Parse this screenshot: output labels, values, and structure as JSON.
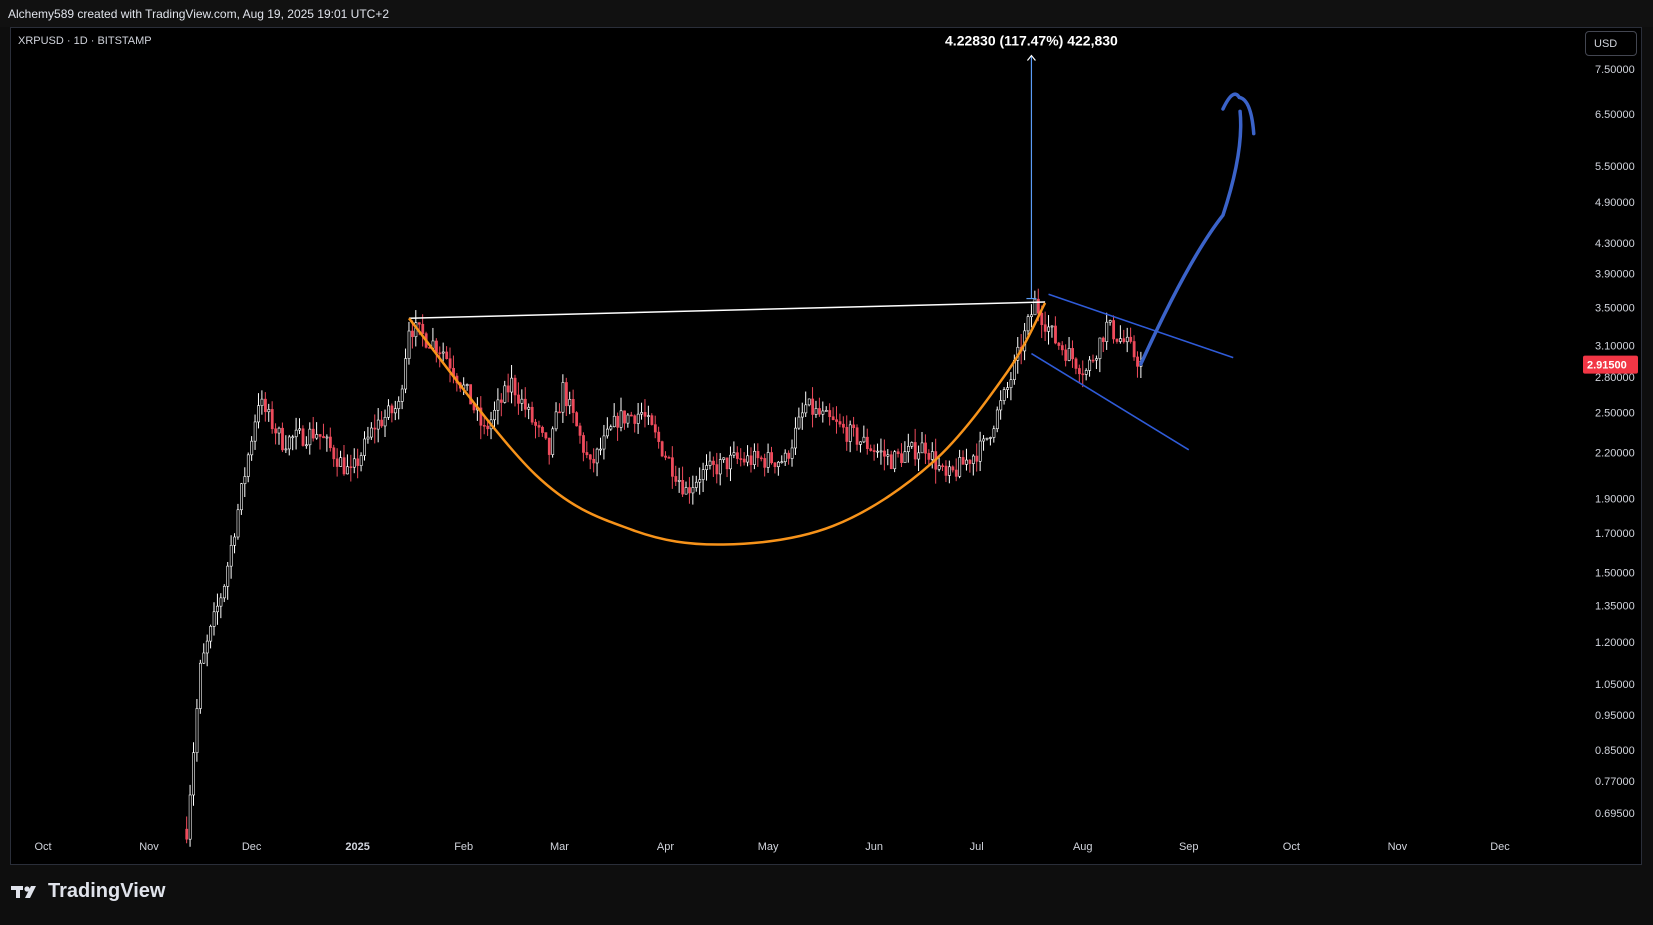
{
  "header": {
    "credit": "Alchemy589 created with TradingView.com, Aug 19, 2025 19:01 UTC+2"
  },
  "chart_header": {
    "symbol_line": "XRPUSD · 1D · BITSTAMP",
    "currency_button": "USD"
  },
  "footer": {
    "brand": "TradingView"
  },
  "colors": {
    "background": "#000000",
    "up_candle": "#ffffff",
    "down_candle": "#ef4b5c",
    "cup_curve": "#f7931a",
    "channel_lines": "#2f5bd8",
    "projection_arrow": "#3b63c9",
    "resistance_line": "#ffffff",
    "price_label_bg": "#f23645"
  },
  "icons": {
    "brand_logo": "tradingview-logo-icon"
  },
  "chart_data": {
    "type": "candlestick",
    "title": "",
    "xlabel": "",
    "ylabel": "",
    "y_scale": "log",
    "y_ticks": [
      7.5,
      6.5,
      5.5,
      4.9,
      4.3,
      3.9,
      3.5,
      3.1,
      2.8,
      2.5,
      2.2,
      1.9,
      1.7,
      1.5,
      1.35,
      1.2,
      1.05,
      0.95,
      0.85,
      0.77,
      0.695
    ],
    "y_tick_labels": [
      "7.50000",
      "6.50000",
      "5.50000",
      "4.90000",
      "4.30000",
      "3.90000",
      "3.50000",
      "3.10000",
      "2.80000",
      "2.50000",
      "2.20000",
      "1.90000",
      "1.70000",
      "1.50000",
      "1.35000",
      "1.20000",
      "1.05000",
      "0.95000",
      "0.85000",
      "0.77000",
      "0.69500"
    ],
    "x_ticks": [
      "Oct",
      "Nov",
      "Dec",
      "2025",
      "Feb",
      "Mar",
      "Apr",
      "May",
      "Jun",
      "Jul",
      "Aug",
      "Sep",
      "Oct",
      "Nov",
      "Dec"
    ],
    "x_tick_dates": [
      "2024-10-01",
      "2024-11-01",
      "2024-12-01",
      "2025-01-01",
      "2025-02-01",
      "2025-03-01",
      "2025-04-01",
      "2025-05-01",
      "2025-06-01",
      "2025-07-01",
      "2025-08-01",
      "2025-09-01",
      "2025-10-01",
      "2025-11-01",
      "2025-12-01"
    ],
    "x_range": [
      "2024-09-30",
      "2025-12-31"
    ],
    "current_price": 2.915,
    "current_price_label": "2.91500",
    "measure_label": "4.22830 (117.47%) 422,830",
    "measure": {
      "from_date": "2025-07-17",
      "from_price": 3.6,
      "to_price": 7.83
    },
    "resistance": {
      "from_date": "2025-01-16",
      "from_price": 3.38,
      "to_date": "2025-07-21",
      "to_price": 3.56
    },
    "channel": {
      "upper": {
        "from_date": "2025-07-22",
        "from_price": 3.65,
        "to_date": "2025-09-14",
        "to_price": 2.98
      },
      "lower": {
        "from_date": "2025-07-17",
        "from_price": 3.02,
        "to_date": "2025-09-01",
        "to_price": 2.22
      }
    },
    "cup_points": [
      {
        "date": "2025-01-16",
        "price": 3.38
      },
      {
        "date": "2025-02-22",
        "price": 2.05
      },
      {
        "date": "2025-03-22",
        "price": 1.72
      },
      {
        "date": "2025-04-18",
        "price": 1.64
      },
      {
        "date": "2025-05-20",
        "price": 1.74
      },
      {
        "date": "2025-06-18",
        "price": 2.13
      },
      {
        "date": "2025-07-10",
        "price": 2.85
      },
      {
        "date": "2025-07-21",
        "price": 3.55
      }
    ],
    "projection": [
      {
        "date": "2025-08-18",
        "price": 2.92
      },
      {
        "date": "2025-09-01",
        "price": 3.6
      },
      {
        "date": "2025-09-11",
        "price": 4.7
      },
      {
        "date": "2025-09-16",
        "price": 6.55
      },
      {
        "date": "2025-09-14",
        "price": 6.85
      },
      {
        "date": "2025-09-11",
        "price": 6.6
      },
      {
        "date": "2025-09-20",
        "price": 6.1
      }
    ],
    "path_anchors": [
      {
        "date": "2024-11-12",
        "price": 0.66
      },
      {
        "date": "2024-11-16",
        "price": 1.1
      },
      {
        "date": "2024-11-23",
        "price": 1.45
      },
      {
        "date": "2024-12-03",
        "price": 2.6
      },
      {
        "date": "2024-12-10",
        "price": 2.28
      },
      {
        "date": "2024-12-20",
        "price": 2.35
      },
      {
        "date": "2024-12-30",
        "price": 2.05
      },
      {
        "date": "2025-01-06",
        "price": 2.4
      },
      {
        "date": "2025-01-13",
        "price": 2.55
      },
      {
        "date": "2025-01-16",
        "price": 3.3
      },
      {
        "date": "2025-01-26",
        "price": 3.05
      },
      {
        "date": "2025-02-03",
        "price": 2.6
      },
      {
        "date": "2025-02-07",
        "price": 2.35
      },
      {
        "date": "2025-02-15",
        "price": 2.75
      },
      {
        "date": "2025-02-26",
        "price": 2.2
      },
      {
        "date": "2025-03-02",
        "price": 2.7
      },
      {
        "date": "2025-03-10",
        "price": 2.1
      },
      {
        "date": "2025-03-18",
        "price": 2.45
      },
      {
        "date": "2025-03-25",
        "price": 2.5
      },
      {
        "date": "2025-04-07",
        "price": 1.95
      },
      {
        "date": "2025-04-11",
        "price": 2.05
      },
      {
        "date": "2025-04-21",
        "price": 2.15
      },
      {
        "date": "2025-05-06",
        "price": 2.15
      },
      {
        "date": "2025-05-12",
        "price": 2.55
      },
      {
        "date": "2025-05-24",
        "price": 2.35
      },
      {
        "date": "2025-06-06",
        "price": 2.15
      },
      {
        "date": "2025-06-16",
        "price": 2.25
      },
      {
        "date": "2025-06-22",
        "price": 2.02
      },
      {
        "date": "2025-07-03",
        "price": 2.25
      },
      {
        "date": "2025-07-10",
        "price": 2.7
      },
      {
        "date": "2025-07-18",
        "price": 3.55
      },
      {
        "date": "2025-07-24",
        "price": 3.15
      },
      {
        "date": "2025-08-02",
        "price": 2.85
      },
      {
        "date": "2025-08-08",
        "price": 3.3
      },
      {
        "date": "2025-08-14",
        "price": 3.1
      },
      {
        "date": "2025-08-18",
        "price": 2.92
      }
    ]
  }
}
